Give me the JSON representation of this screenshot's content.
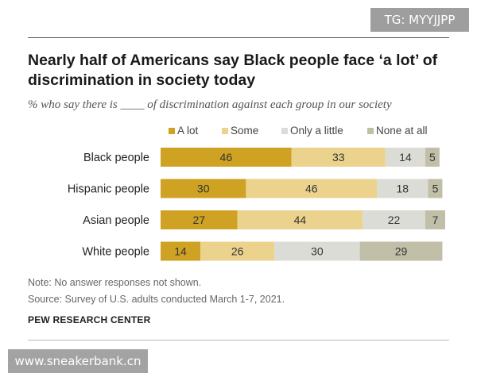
{
  "watermarks": {
    "top": "TG: MYYJJPP",
    "bottom": "www.sneakerbank.cn"
  },
  "title": "Nearly half of Americans say Black people face ‘a lot’ of discrimination in society today",
  "subtitle": "% who say there is ____ of discrimination against each group in our society",
  "chart_data": {
    "type": "bar",
    "orientation": "horizontal",
    "stacked": true,
    "categories": [
      "Black people",
      "Hispanic people",
      "Asian people",
      "White people"
    ],
    "series": [
      {
        "name": "A lot",
        "color": "#cfa223",
        "values": [
          46,
          30,
          27,
          14
        ]
      },
      {
        "name": "Some",
        "color": "#ebd38d",
        "values": [
          33,
          46,
          44,
          26
        ]
      },
      {
        "name": "Only a little",
        "color": "#dcdcd6",
        "values": [
          14,
          18,
          22,
          30
        ]
      },
      {
        "name": "None at all",
        "color": "#c1bfa7",
        "values": [
          5,
          5,
          7,
          29
        ]
      }
    ],
    "legend_position": "top",
    "xlim": [
      0,
      100
    ]
  },
  "notes": {
    "note": "Note: No answer responses not shown.",
    "source": "Source: Survey of U.S. adults conducted March 1-7, 2021.",
    "org": "PEW RESEARCH CENTER"
  }
}
